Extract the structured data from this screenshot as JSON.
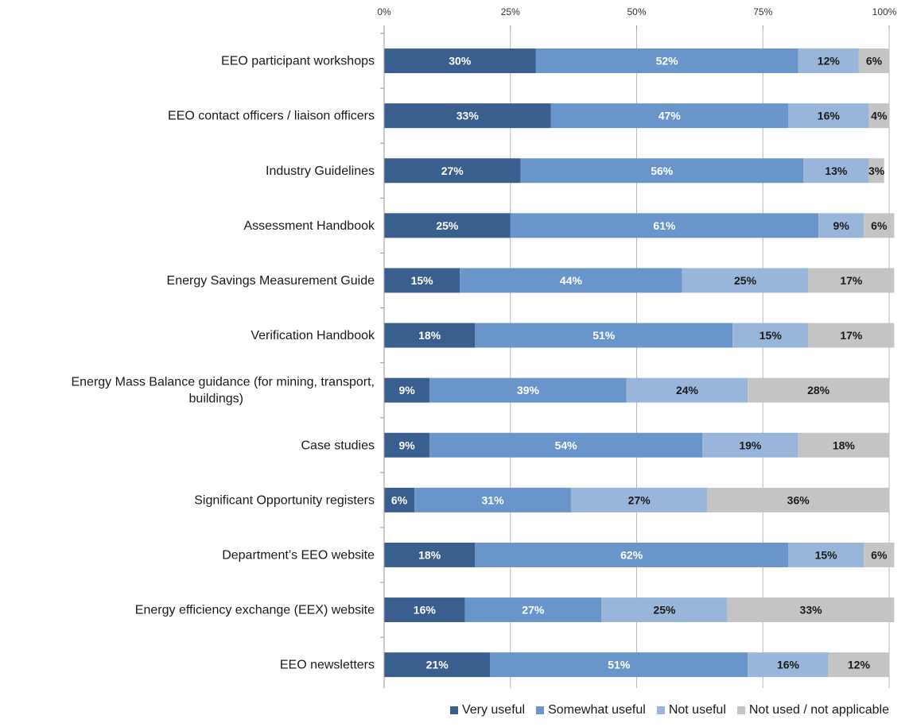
{
  "chart_data": {
    "type": "bar",
    "orientation": "horizontal",
    "stacked": true,
    "percent_stacked": true,
    "title": "",
    "xlabel": "",
    "ylabel": "",
    "xlim": [
      0,
      100
    ],
    "x_ticks": [
      "0%",
      "25%",
      "50%",
      "75%",
      "100%"
    ],
    "x_axis_position": "top",
    "grid": "vertical",
    "legend_position": "bottom",
    "categories": [
      "EEO participant workshops",
      "EEO contact officers / liaison officers",
      "Industry Guidelines",
      "Assessment Handbook",
      "Energy Savings Measurement Guide",
      "Verification Handbook",
      "Energy Mass Balance guidance (for mining, transport,\nbuildings)",
      "Case studies",
      "Significant Opportunity registers",
      "Department’s EEO website",
      "Energy efficiency exchange (EEX) website",
      "EEO newsletters"
    ],
    "series": [
      {
        "name": "Very useful",
        "color": "#3a5f8f",
        "label_color": "#ffffff",
        "values": [
          30,
          33,
          27,
          25,
          15,
          18,
          9,
          9,
          6,
          18,
          16,
          21
        ]
      },
      {
        "name": "Somewhat useful",
        "color": "#6a95ca",
        "label_color": "#ffffff",
        "values": [
          52,
          47,
          56,
          61,
          44,
          51,
          39,
          54,
          31,
          62,
          27,
          51
        ]
      },
      {
        "name": "Not useful",
        "color": "#99b6da",
        "label_color": "#1a1a1a",
        "values": [
          12,
          16,
          13,
          9,
          25,
          15,
          24,
          19,
          27,
          15,
          25,
          16
        ]
      },
      {
        "name": "Not used / not applicable",
        "color": "#c4c4c4",
        "label_color": "#1a1a1a",
        "values": [
          6,
          4,
          3,
          6,
          17,
          17,
          28,
          18,
          36,
          6,
          33,
          12
        ]
      }
    ]
  }
}
